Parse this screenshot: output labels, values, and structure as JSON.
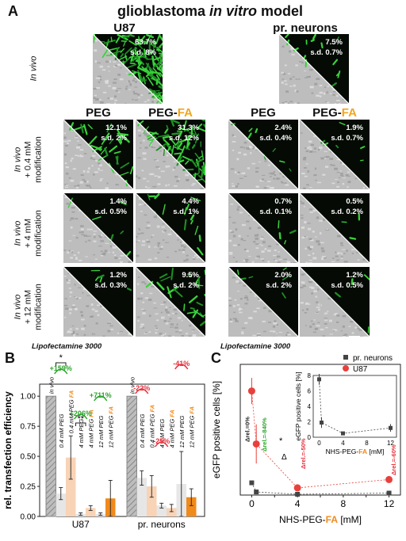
{
  "panel_a": {
    "letter": "A",
    "title_main": "glioblastoma ",
    "title_italic": "in vitro",
    "title_end": " model",
    "u87_label": "U87",
    "neurons_label": "pr. neurons",
    "in_vivo_label": "In vivo",
    "col_peg": "PEG",
    "col_pegfa_prefix": "PEG-",
    "col_pegfa_suffix": "FA",
    "row_labels": [
      {
        "line1": "In vivo",
        "line2": "+ 0.4 mM",
        "line3": "modification"
      },
      {
        "line1": "In vivo",
        "line2": "+ 4 mM",
        "line3": "modification"
      },
      {
        "line1": "In vivo",
        "line2": "+ 12 mM",
        "line3": "modification"
      }
    ],
    "top_tiles": {
      "u87": {
        "pct": "63.7%",
        "sd": "s.d. 8%"
      },
      "neurons": {
        "pct": "7.5%",
        "sd": "s.d. 0.7%"
      }
    },
    "grid": [
      [
        {
          "pct": "12.1%",
          "sd": "s.d. 2%"
        },
        {
          "pct": "31.3%",
          "sd": "s.d. 12%"
        },
        {
          "pct": "2.4%",
          "sd": "s.d. 0.4%"
        },
        {
          "pct": "1.9%",
          "sd": "s.d. 0.7%"
        }
      ],
      [
        {
          "pct": "1.4%",
          "sd": "s.d. 0.5%"
        },
        {
          "pct": "4.4%",
          "sd": "s.d. 1%"
        },
        {
          "pct": "0.7%",
          "sd": "s.d. 0.1%"
        },
        {
          "pct": "0.5%",
          "sd": "s.d. 0.2%"
        }
      ],
      [
        {
          "pct": "1.2%",
          "sd": "s.d. 0.3%"
        },
        {
          "pct": "9.5%",
          "sd": "s.d. 2%"
        },
        {
          "pct": "2.0%",
          "sd": "s.d. 2%"
        },
        {
          "pct": "1.2%",
          "sd": "s.d. 0.5%"
        }
      ]
    ]
  },
  "panel_b": {
    "letter": "B",
    "lipofectamine": "Lipofectamine 3000",
    "ylabel": "rel. transfection efficiency",
    "group_labels": [
      "U87",
      "pr. neurons"
    ],
    "bar_labels": [
      "in vivo",
      "0.4 mM PEG",
      "0.4 mM PEG FA",
      "4 mM PEG",
      "4 mM PEG FA",
      "12 mM PEG",
      "12 mM PEG FA"
    ],
    "annotations_u87": [
      "+159%",
      "+206%",
      "+711%"
    ],
    "annotations_neurons": [
      "-22%",
      "-25%",
      "-41%"
    ],
    "sig1": "*",
    "sig2": "**"
  },
  "panel_c": {
    "letter": "C",
    "lipofectamine": "Lipofectamine 3000",
    "ylabel": "eGFP positive cells [%]",
    "xlabel_prefix": "NHS-PEG-",
    "xlabel_fa": "FA",
    "xlabel_suffix": " [mM]",
    "legend": [
      "pr. neurons",
      "U87"
    ],
    "inset_ylabel": "eGFP positive cells [%]",
    "inset_xlabel_prefix": "NHS-PEG-",
    "inset_xlabel_fa": "FA",
    "inset_xlabel_suffix": " [mM]",
    "delta_labels": [
      "Δrel.=0%",
      "Δrel.=-840%",
      "Δrel.=-50%",
      "Δrel.=-60%"
    ],
    "delta_symbol": "Δ",
    "star": "*"
  },
  "chart_data": [
    {
      "type": "bar",
      "title": "",
      "ylabel": "rel. transfection efficiency",
      "ylim": [
        0,
        1.1
      ],
      "yticks": [
        "0.00",
        "0.25",
        "0.50",
        "0.75",
        "1.00"
      ],
      "groups": [
        "U87",
        "pr. neurons"
      ],
      "categories": [
        "in vivo",
        "0.4 mM PEG",
        "0.4 mM PEG FA",
        "4 mM PEG",
        "4 mM PEG FA",
        "12 mM PEG",
        "12 mM PEG FA"
      ],
      "series": [
        {
          "name": "U87",
          "values": [
            1.0,
            0.19,
            0.49,
            0.02,
            0.07,
            0.02,
            0.15
          ],
          "errors": [
            0,
            0.05,
            0.18,
            0.01,
            0.02,
            0.01,
            0.15
          ]
        },
        {
          "name": "pr. neurons",
          "values": [
            1.0,
            0.32,
            0.25,
            0.09,
            0.07,
            0.27,
            0.16
          ],
          "errors": [
            0,
            0.06,
            0.09,
            0.02,
            0.03,
            0.27,
            0.07
          ]
        }
      ],
      "colors": [
        "#a8a8a8",
        "#e6e6e6",
        "#f8d3b5",
        "#e6e6e6",
        "#f8d3b5",
        "#e6e6e6",
        "#f08a1a"
      ]
    },
    {
      "type": "scatter",
      "title": "",
      "xlabel": "NHS-PEG-FA [mM]",
      "ylabel": "eGFP positive cells [%]",
      "xlim": [
        -1,
        13
      ],
      "ylim": [
        0,
        80
      ],
      "xticks": [
        0,
        2,
        4,
        6,
        8,
        10,
        12
      ],
      "series": [
        {
          "name": "pr. neurons",
          "x": [
            0,
            0.4,
            4,
            12
          ],
          "y": [
            7.5,
            1.9,
            0.5,
            1.2
          ],
          "err": [
            0.7,
            0.7,
            0.2,
            0.5
          ],
          "color": "#444444"
        },
        {
          "name": "U87",
          "x": [
            0,
            0.4,
            4,
            12
          ],
          "y": [
            63.7,
            31.3,
            4.4,
            9.5
          ],
          "err": [
            8,
            12,
            1,
            2
          ],
          "color": "#e8403c"
        }
      ],
      "inset": {
        "xlim": [
          -1,
          13
        ],
        "ylim": [
          0,
          8
        ],
        "xticks": [
          0,
          4,
          8,
          12
        ],
        "yticks": [
          0,
          2,
          4,
          6,
          8
        ],
        "x": [
          0,
          0.4,
          4,
          12
        ],
        "y": [
          7.5,
          1.9,
          0.5,
          1.2
        ],
        "err": [
          0.7,
          0.7,
          0.2,
          0.5
        ]
      }
    }
  ]
}
